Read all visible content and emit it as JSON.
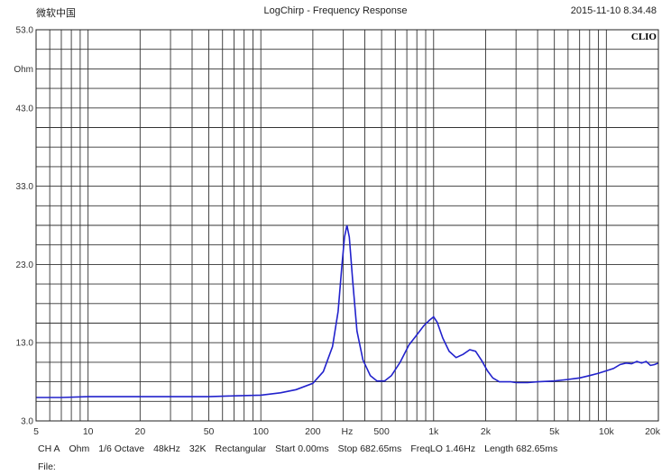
{
  "header": {
    "left": "微软中国",
    "title": "LogChirp - Frequency Response",
    "timestamp": "2015-11-10 8.34.48"
  },
  "brand": "CLIO",
  "footer": {
    "items": [
      "CH A",
      "Ohm",
      "1/6 Octave",
      "48kHz",
      "32K",
      "Rectangular",
      "Start 0.00ms",
      "Stop 682.65ms",
      "FreqLO 1.46Hz",
      "Length 682.65ms"
    ],
    "file_label": "File:"
  },
  "chart_data": {
    "type": "line",
    "title": "LogChirp - Frequency Response",
    "xscale": "log",
    "xlim": [
      5,
      20000
    ],
    "ylim": [
      3.0,
      53.0
    ],
    "ylabel": "Ohm",
    "xlabel": "Hz",
    "grid": true,
    "line_color": "#2222cc",
    "y_ticks": [
      {
        "value": 53.0,
        "label": "53.0"
      },
      {
        "value": 48.0,
        "label": "Ohm"
      },
      {
        "value": 43.0,
        "label": "43.0"
      },
      {
        "value": 33.0,
        "label": "33.0"
      },
      {
        "value": 23.0,
        "label": "23.0"
      },
      {
        "value": 13.0,
        "label": "13.0"
      },
      {
        "value": 3.0,
        "label": "3.0"
      }
    ],
    "x_ticks": [
      {
        "value": 5,
        "label": "5"
      },
      {
        "value": 10,
        "label": "10"
      },
      {
        "value": 20,
        "label": "20"
      },
      {
        "value": 50,
        "label": "50"
      },
      {
        "value": 100,
        "label": "100"
      },
      {
        "value": 200,
        "label": "200"
      },
      {
        "value": 316,
        "label": "Hz"
      },
      {
        "value": 500,
        "label": "500"
      },
      {
        "value": 1000,
        "label": "1k"
      },
      {
        "value": 2000,
        "label": "2k"
      },
      {
        "value": 5000,
        "label": "5k"
      },
      {
        "value": 10000,
        "label": "10k"
      },
      {
        "value": 20000,
        "label": "20k"
      }
    ],
    "series": [
      {
        "x": [
          5,
          7,
          10,
          20,
          50,
          70,
          100,
          130,
          160,
          200,
          230,
          260,
          280,
          295,
          305,
          315,
          325,
          340,
          360,
          390,
          430,
          470,
          520,
          570,
          640,
          720,
          800,
          880,
          950,
          1000,
          1050,
          1130,
          1230,
          1350,
          1480,
          1620,
          1750,
          1900,
          2050,
          2200,
          2400,
          2800,
          3000,
          3500,
          4000,
          5000,
          6000,
          7000,
          8000,
          9000,
          10000,
          11000,
          12000,
          13000,
          14000,
          15000,
          16000,
          17000,
          18000,
          19000,
          20000
        ],
        "y": [
          6.0,
          6.0,
          6.1,
          6.1,
          6.1,
          6.2,
          6.3,
          6.6,
          7.0,
          7.8,
          9.3,
          12.5,
          17.0,
          23.0,
          26.5,
          28.0,
          26.5,
          21.0,
          14.5,
          10.8,
          8.8,
          8.1,
          8.1,
          8.8,
          10.5,
          12.7,
          14.0,
          15.2,
          15.9,
          16.3,
          15.6,
          13.6,
          11.9,
          11.1,
          11.5,
          12.1,
          11.9,
          10.7,
          9.4,
          8.5,
          8.0,
          8.0,
          7.9,
          7.9,
          8.0,
          8.1,
          8.3,
          8.5,
          8.8,
          9.1,
          9.4,
          9.7,
          10.2,
          10.4,
          10.3,
          10.6,
          10.4,
          10.6,
          10.1,
          10.2,
          10.4
        ]
      }
    ]
  }
}
